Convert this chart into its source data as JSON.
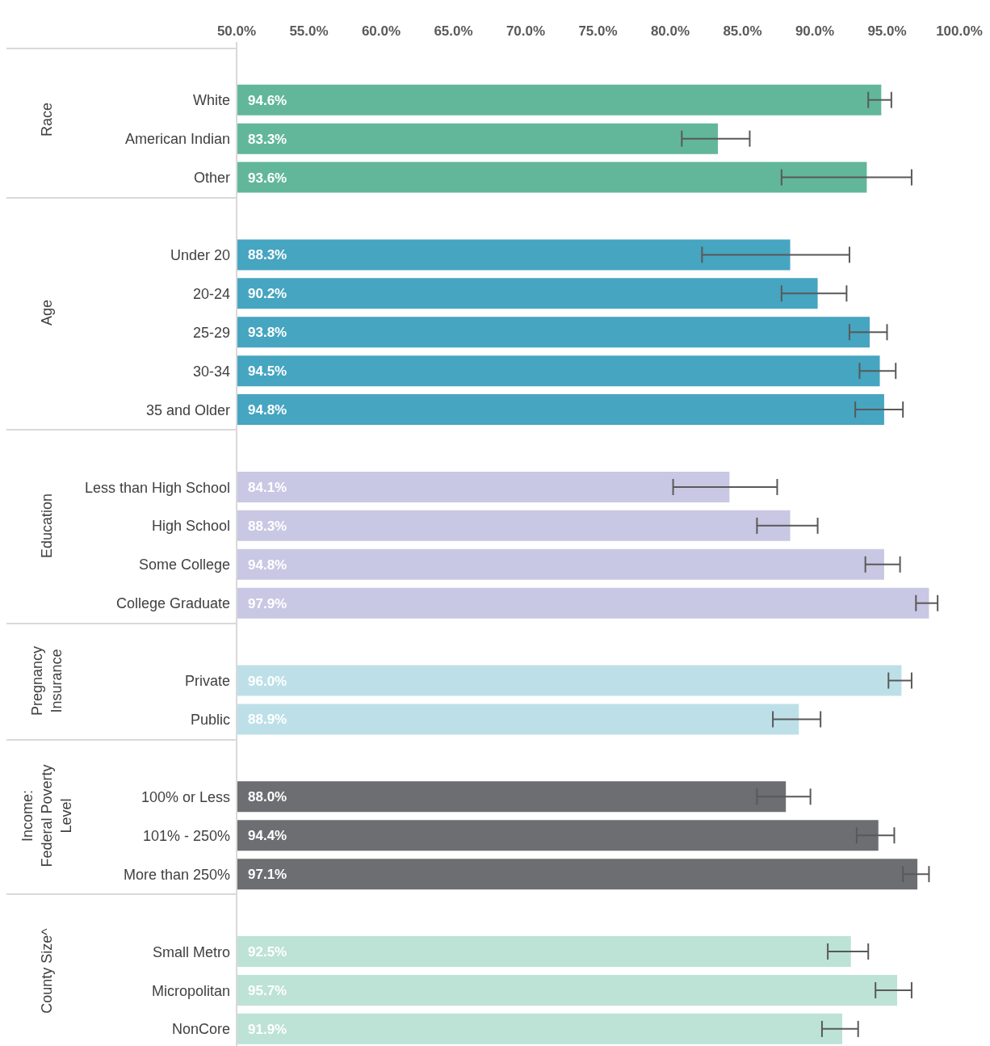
{
  "chart_data": {
    "type": "bar",
    "orientation": "horizontal",
    "categories": [
      null,
      "White",
      "American Indian",
      "Other",
      null,
      "Under 20",
      "20-24",
      "25-29",
      "30-34",
      "35 and Older",
      null,
      "Less than High School",
      "High School",
      "Some College",
      "College Graduate",
      null,
      "Private",
      "Public",
      null,
      "100% or Less",
      "101% - 250%",
      "More than 250%",
      null,
      "Small Metro",
      "Micropolitan",
      "NonCore"
    ],
    "values": [
      null,
      94.6,
      83.3,
      93.6,
      null,
      88.3,
      90.2,
      93.8,
      94.5,
      94.8,
      null,
      84.1,
      88.3,
      94.8,
      97.9,
      null,
      96.0,
      88.9,
      null,
      88.0,
      94.4,
      97.1,
      null,
      92.5,
      95.7,
      91.9
    ],
    "errors": [
      null,
      [
        93.7,
        95.3
      ],
      [
        80.8,
        85.5
      ],
      [
        87.7,
        96.7
      ],
      null,
      [
        82.2,
        92.4
      ],
      [
        87.7,
        92.2
      ],
      [
        92.4,
        95.0
      ],
      [
        93.1,
        95.6
      ],
      [
        92.8,
        96.1
      ],
      null,
      [
        80.2,
        87.4
      ],
      [
        86.0,
        90.2
      ],
      [
        93.5,
        95.9
      ],
      [
        97.0,
        98.5
      ],
      null,
      [
        95.1,
        96.7
      ],
      [
        87.1,
        90.4
      ],
      null,
      [
        86.0,
        89.7
      ],
      [
        92.9,
        95.5
      ],
      [
        96.1,
        97.9
      ],
      null,
      [
        90.9,
        93.7
      ],
      [
        94.2,
        96.7
      ],
      [
        90.5,
        93.0
      ]
    ],
    "value_labels": [
      null,
      "94.6%",
      "83.3%",
      "93.6%",
      null,
      "88.3%",
      "90.2%",
      "93.8%",
      "94.5%",
      "94.8%",
      null,
      "84.1%",
      "88.3%",
      "94.8%",
      "97.9%",
      null,
      "96.0%",
      "88.9%",
      null,
      "88.0%",
      "94.4%",
      "97.1%",
      null,
      "92.5%",
      "95.7%",
      "91.9%"
    ],
    "colors": [
      null,
      "#62b79a",
      "#62b79a",
      "#62b79a",
      null,
      "#46a5c0",
      "#46a5c0",
      "#46a5c0",
      "#46a5c0",
      "#46a5c0",
      null,
      "#c8c8e4",
      "#c8c8e4",
      "#c8c8e4",
      "#c8c8e4",
      null,
      "#bde0e8",
      "#bde0e8",
      null,
      "#6d6e72",
      "#6d6e72",
      "#6d6e72",
      null,
      "#bde2d6",
      "#bde2d6",
      "#bde2d6"
    ],
    "annotations": [
      "Race",
      "Age",
      "Education",
      "Pregnancy Insurance",
      "Income: Federal Poverty Level",
      "County Size^"
    ],
    "xlim": [
      50,
      100
    ],
    "xticks": [
      {
        "value": 50,
        "label": "50.0%"
      },
      {
        "value": 55,
        "label": "55.0%"
      },
      {
        "value": 60,
        "label": "60.0%"
      },
      {
        "value": 65,
        "label": "65.0%"
      },
      {
        "value": 70,
        "label": "70.0%"
      },
      {
        "value": 75,
        "label": "75.0%"
      },
      {
        "value": 80,
        "label": "80.0%"
      },
      {
        "value": 85,
        "label": "85.0%"
      },
      {
        "value": 90,
        "label": "90.0%"
      },
      {
        "value": 95,
        "label": "95.0%"
      },
      {
        "value": 100,
        "label": "100.0%"
      }
    ],
    "tick_labels": "xy"
  }
}
